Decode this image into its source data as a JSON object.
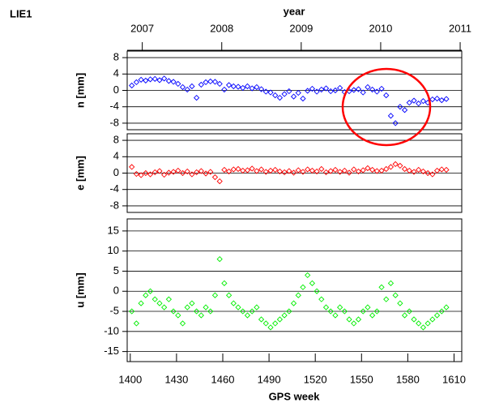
{
  "chart_data": {
    "type": "scatter",
    "title": "LIE1",
    "xlabel": "GPS week",
    "x2label": "year",
    "xlim": [
      1398,
      1615
    ],
    "xticks": [
      1400,
      1430,
      1460,
      1490,
      1520,
      1550,
      1580,
      1610
    ],
    "x2lim": [
      2006.81,
      2011.02
    ],
    "x2ticks": [
      2007,
      2008,
      2009,
      2010,
      2011
    ],
    "grid": true,
    "x": [
      1401,
      1404,
      1407,
      1410,
      1413,
      1416,
      1419,
      1422,
      1425,
      1428,
      1431,
      1434,
      1437,
      1440,
      1443,
      1446,
      1449,
      1452,
      1455,
      1458,
      1461,
      1464,
      1467,
      1470,
      1473,
      1476,
      1479,
      1482,
      1485,
      1488,
      1491,
      1494,
      1497,
      1500,
      1503,
      1506,
      1509,
      1512,
      1515,
      1518,
      1521,
      1524,
      1527,
      1530,
      1533,
      1536,
      1539,
      1542,
      1545,
      1548,
      1551,
      1554,
      1557,
      1560,
      1563,
      1566,
      1569,
      1572,
      1575,
      1578,
      1581,
      1584,
      1587,
      1590,
      1593,
      1596,
      1599,
      1602,
      1605
    ],
    "series": [
      {
        "ylabel": "n [mm]",
        "color": "#0000ff",
        "ylim": [
          -9.6,
          9.6
        ],
        "yticks": [
          8,
          4,
          0,
          -4,
          -8
        ],
        "values": [
          1.2,
          2.0,
          2.6,
          2.4,
          2.7,
          2.8,
          2.5,
          2.9,
          2.3,
          2.1,
          1.6,
          0.8,
          0.2,
          1.0,
          -1.8,
          1.4,
          2.0,
          2.2,
          2.1,
          1.6,
          0.2,
          1.3,
          1.0,
          0.9,
          0.6,
          1.0,
          0.5,
          0.8,
          0.3,
          -0.3,
          -0.5,
          -1.2,
          -1.8,
          -0.9,
          -0.2,
          -1.5,
          -0.6,
          -2.0,
          -0.1,
          0.4,
          -0.3,
          0.2,
          0.5,
          -0.2,
          0.0,
          0.6,
          -0.4,
          -0.2,
          0.1,
          0.3,
          -0.5,
          0.8,
          0.2,
          -0.3,
          0.4,
          -1.2,
          -6.2,
          -8.0,
          -4.0,
          -4.8,
          -3.0,
          -2.5,
          -3.2,
          -2.6,
          -3.0,
          -2.2,
          -2.0,
          -2.4,
          -2.1
        ]
      },
      {
        "ylabel": "e [mm]",
        "color": "#ff0000",
        "ylim": [
          -9.6,
          9.6
        ],
        "yticks": [
          8,
          4,
          0,
          -4,
          -8
        ],
        "values": [
          1.5,
          -0.2,
          -0.5,
          0.0,
          -0.3,
          0.2,
          0.5,
          -0.4,
          0.1,
          0.3,
          0.6,
          0.0,
          0.4,
          -0.3,
          0.2,
          0.5,
          -0.1,
          0.3,
          -1.0,
          -2.0,
          0.8,
          0.4,
          0.9,
          1.0,
          0.6,
          0.7,
          1.1,
          0.5,
          0.9,
          0.3,
          0.6,
          0.8,
          0.4,
          0.2,
          0.5,
          0.1,
          0.7,
          0.3,
          0.9,
          0.6,
          0.4,
          1.0,
          0.2,
          0.5,
          0.8,
          0.3,
          0.6,
          0.1,
          0.9,
          0.4,
          0.7,
          1.2,
          0.8,
          0.5,
          0.6,
          1.0,
          1.5,
          2.2,
          1.8,
          1.0,
          0.6,
          0.3,
          0.8,
          0.4,
          0.0,
          -0.3,
          0.6,
          0.9,
          0.8
        ]
      },
      {
        "ylabel": "u [mm]",
        "color": "#00ee00",
        "ylim": [
          -17.5,
          18
        ],
        "yticks": [
          15,
          10,
          5,
          0,
          -5,
          -10,
          -15
        ],
        "values": [
          -5,
          -8,
          -3,
          -1,
          0,
          -2,
          -3,
          -4,
          -2,
          -5,
          -6,
          -8,
          -4,
          -3,
          -5,
          -6,
          -4,
          -5,
          -1,
          8,
          2,
          -1,
          -3,
          -4,
          -5,
          -6,
          -5,
          -4,
          -7,
          -8,
          -9,
          -8,
          -7,
          -6,
          -5,
          -3,
          -1,
          1,
          4,
          2,
          0,
          -2,
          -4,
          -5,
          -6,
          -4,
          -5,
          -7,
          -8,
          -7,
          -5,
          -4,
          -6,
          -5,
          1,
          -2,
          2,
          -1,
          -3,
          -6,
          -5,
          -7,
          -8,
          -9,
          -8,
          -7,
          -6,
          -5,
          -4
        ]
      }
    ]
  }
}
